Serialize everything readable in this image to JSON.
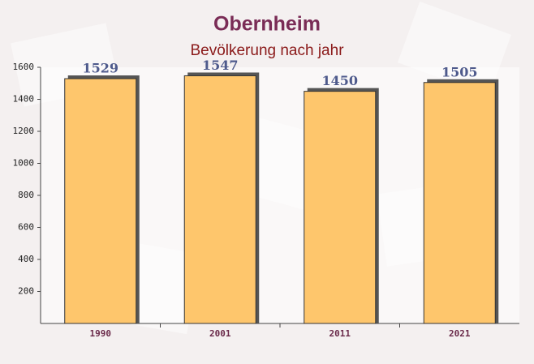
{
  "chart_data": {
    "type": "bar",
    "title": "Obernheim",
    "subtitle": "Bevölkerung nach jahr",
    "categories": [
      "1990",
      "2001",
      "2011",
      "2021"
    ],
    "values": [
      1529,
      1547,
      1450,
      1505
    ],
    "color": "#fec66c",
    "ylim": [
      0,
      1600
    ],
    "yticks": [
      200,
      400,
      600,
      800,
      1000,
      1200,
      1400,
      1600
    ],
    "grid": false
  }
}
